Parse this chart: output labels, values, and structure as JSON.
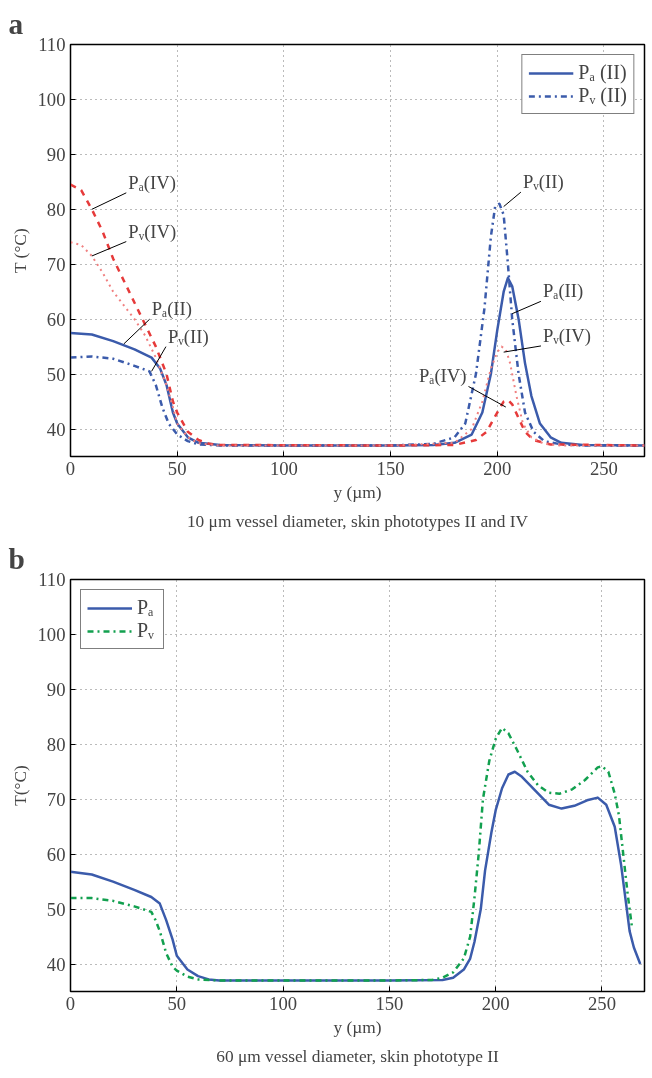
{
  "chart_data": [
    {
      "type": "line",
      "title": "a",
      "xlabel": "y (µm)",
      "ylabel": "T (°C)",
      "xlim": [
        0,
        269
      ],
      "ylim": [
        35,
        110
      ],
      "xticks": [
        0,
        50,
        100,
        150,
        200,
        250
      ],
      "yticks": [
        40,
        50,
        60,
        70,
        80,
        90,
        100,
        110
      ],
      "grid": true,
      "legend": "top right",
      "marker": "none",
      "series": [
        {
          "name": "Pₐ (II)",
          "color": "#3b5bab",
          "line_style": "solid",
          "x": [
            0,
            10,
            20,
            30,
            38,
            42,
            45,
            48,
            50,
            55,
            60,
            70,
            100,
            150,
            170,
            180,
            188,
            193,
            197,
            200,
            203,
            205,
            207,
            210,
            213,
            216,
            220,
            225,
            230,
            240,
            269
          ],
          "values": [
            57.5,
            57.2,
            56,
            54.5,
            53,
            51,
            48,
            43,
            41,
            38.5,
            37.5,
            37.1,
            37,
            37,
            37.1,
            37.5,
            39,
            43,
            50,
            58,
            65,
            67.5,
            66,
            60,
            52,
            46,
            41,
            38.5,
            37.5,
            37.1,
            37
          ]
        },
        {
          "name": "Pᵥ (II)",
          "color": "#3b5bab",
          "line_style": "dashdot",
          "x": [
            0,
            10,
            20,
            30,
            37,
            40,
            43,
            46,
            50,
            55,
            60,
            70,
            150,
            170,
            180,
            185,
            190,
            194,
            197,
            199,
            201,
            203,
            205,
            207,
            210,
            213,
            217,
            222,
            230,
            240,
            269
          ],
          "values": [
            53,
            53.2,
            52.8,
            51.5,
            50.5,
            48,
            44,
            41,
            39,
            37.8,
            37.2,
            37,
            37,
            37.3,
            38.5,
            41,
            50,
            62,
            75,
            80.5,
            81,
            79,
            70,
            60,
            50,
            43,
            39.5,
            37.8,
            37.2,
            37,
            37
          ]
        },
        {
          "color": "#e63a3a",
          "line_style": "dashed",
          "x": [
            0,
            5,
            10,
            15,
            20,
            25,
            30,
            35,
            40,
            45,
            48,
            50,
            55,
            60,
            65,
            70,
            150,
            180,
            190,
            195,
            200,
            203,
            205,
            207,
            210,
            213,
            217,
            225,
            269
          ],
          "values": [
            84.5,
            83.5,
            80,
            76,
            71,
            67,
            63,
            59,
            55,
            50,
            45,
            43,
            39.5,
            38,
            37.3,
            37.1,
            37,
            37.1,
            38,
            39.5,
            43,
            45,
            45.3,
            44.5,
            42,
            39.5,
            38,
            37.2,
            37
          ]
        },
        {
          "color": "#f08080",
          "line_style": "dotted",
          "x": [
            0,
            5,
            10,
            15,
            20,
            25,
            30,
            35,
            40,
            45,
            48,
            50,
            55,
            60,
            70,
            150,
            180,
            188,
            193,
            197,
            200,
            202,
            204,
            206,
            209,
            212,
            216,
            222,
            230,
            269
          ],
          "values": [
            74,
            73.5,
            71.5,
            68.5,
            65,
            62.5,
            60,
            57,
            53,
            48,
            44,
            41,
            38.5,
            37.4,
            37,
            37,
            37.5,
            40,
            45,
            51,
            54,
            55,
            54.5,
            52,
            46,
            41,
            38.5,
            37.3,
            37,
            37
          ]
        }
      ],
      "annotations": [
        {
          "text": "Pₐ(IV)",
          "x": 10,
          "y": 80
        },
        {
          "text": "Pᵥ(IV)",
          "x": 10,
          "y": 71.5
        },
        {
          "text": "Pₐ(II)",
          "x": 25,
          "y": 55.5
        },
        {
          "text": "Pᵥ(II)",
          "x": 38,
          "y": 50.5
        },
        {
          "text": "Pᵥ(II)",
          "x": 203,
          "y": 80.5
        },
        {
          "text": "Pₐ(II)",
          "x": 207,
          "y": 61
        },
        {
          "text": "Pᵥ(IV)",
          "x": 203,
          "y": 54
        },
        {
          "text": "Pₐ(IV)",
          "x": 204,
          "y": 44
        },
        "10 μm vessel diameter, skin phototypes II and IV"
      ]
    },
    {
      "type": "line",
      "title": "b",
      "xlabel": "y (µm)",
      "ylabel": "T(°C)",
      "xlim": [
        0,
        270
      ],
      "ylim": [
        35,
        110
      ],
      "xticks": [
        0,
        50,
        100,
        150,
        200,
        250
      ],
      "yticks": [
        40,
        50,
        60,
        70,
        80,
        90,
        100,
        110
      ],
      "grid": true,
      "legend": "top left",
      "marker": "none",
      "series": [
        {
          "name": "Pₐ",
          "color": "#3b5bab",
          "line_style": "solid",
          "x": [
            0,
            10,
            20,
            30,
            38,
            42,
            45,
            48,
            50,
            55,
            60,
            65,
            70,
            150,
            175,
            180,
            185,
            188,
            190,
            193,
            195,
            198,
            200,
            203,
            206,
            209,
            212,
            220,
            225,
            231,
            237,
            243,
            248,
            252,
            256,
            259,
            261,
            263,
            265,
            268
          ],
          "values": [
            56.8,
            56.3,
            55,
            53.5,
            52.2,
            51,
            48,
            44.5,
            41.5,
            39,
            37.8,
            37.2,
            37,
            37,
            37.1,
            37.5,
            39,
            41,
            44,
            50,
            57,
            64,
            68,
            72,
            74.5,
            75,
            74.2,
            71,
            69,
            68.3,
            68.8,
            69.8,
            70.3,
            69,
            65,
            58,
            52,
            46,
            43,
            40
          ]
        },
        {
          "name": "Pᵥ",
          "color": "#12a04f",
          "line_style": "dashdot",
          "x": [
            0,
            10,
            20,
            30,
            38,
            40,
            42,
            45,
            48,
            50,
            55,
            60,
            70,
            150,
            170,
            175,
            180,
            185,
            188,
            190,
            192,
            194,
            197,
            200,
            203,
            206,
            210,
            215,
            220,
            225,
            230,
            236,
            242,
            248,
            250,
            253,
            256,
            258,
            260,
            262,
            264
          ],
          "values": [
            52,
            52,
            51.5,
            50.5,
            49.5,
            48,
            46,
            42,
            39.5,
            38.8,
            37.7,
            37.2,
            37,
            37,
            37.1,
            37.5,
            38.5,
            41,
            45,
            52,
            60,
            70,
            77,
            81,
            83,
            82,
            79,
            75,
            72.5,
            71.2,
            71,
            71.8,
            73.5,
            75.8,
            76,
            75,
            71,
            67,
            60,
            53,
            47
          ]
        }
      ],
      "annotations": [
        "60 μm vessel diameter, skin phototype II"
      ]
    }
  ]
}
